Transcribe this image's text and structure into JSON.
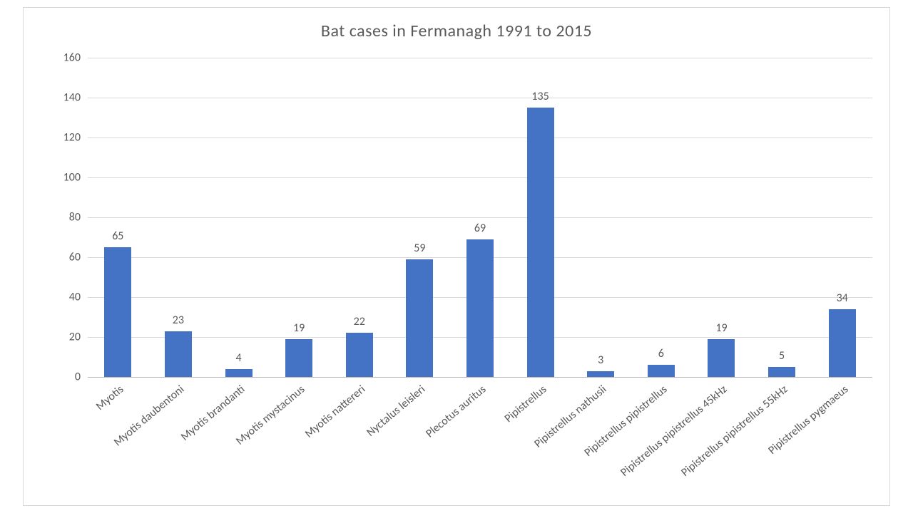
{
  "chart": {
    "type": "bar",
    "title": "Bat cases in Fermanagh 1991 to 2015",
    "title_fontsize": 24,
    "title_color": "#595959",
    "background_color": "#ffffff",
    "border_color": "#d9d9d9",
    "grid_color": "#d9d9d9",
    "axis_color": "#b7b7b7",
    "tick_label_color": "#595959",
    "tick_label_fontsize": 16,
    "data_label_color": "#595959",
    "data_label_fontsize": 16,
    "bar_color": "#4472c4",
    "bar_width": 0.45,
    "ylim": [
      0,
      160
    ],
    "ytick_step": 20,
    "yticks": [
      0,
      20,
      40,
      60,
      80,
      100,
      120,
      140,
      160
    ],
    "categories": [
      "Myotis",
      "Myotis daubentoni",
      "Myotis brandanti",
      "Myotis mystacinus",
      "Myotis nattereri",
      "Nyctalus leisleri",
      "Plecotus auritus",
      "Pipistrellus",
      "Pipistrellus nathusii",
      "Pipistrellus pipistrellus",
      "Pipistrellus pipistrellus 45kHz",
      "Pipistrellus pipistrellus 55kHz",
      "Pipistrellus pygmaeus"
    ],
    "values": [
      65,
      23,
      4,
      19,
      22,
      59,
      69,
      135,
      3,
      6,
      19,
      5,
      34
    ],
    "xlabel_rotation_deg": -40
  }
}
